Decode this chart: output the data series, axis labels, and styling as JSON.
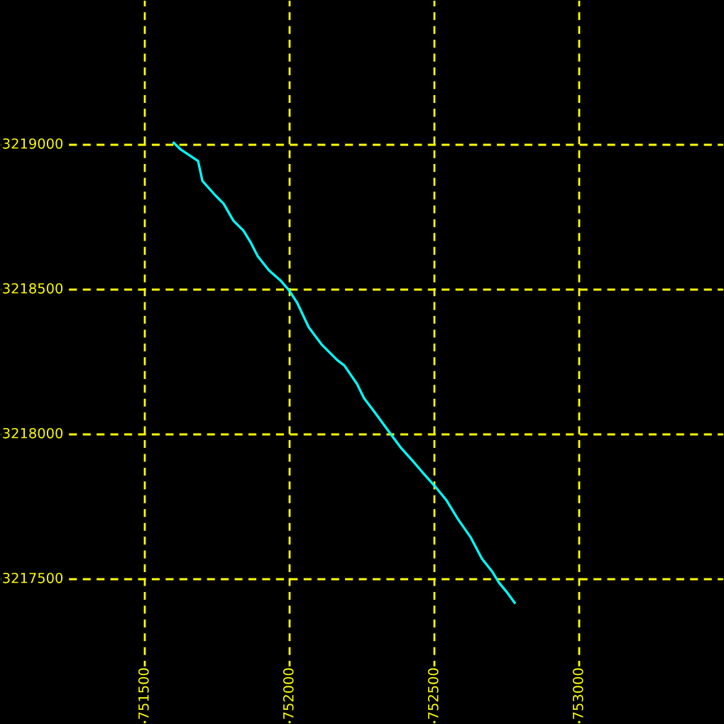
{
  "chart_data": {
    "type": "line",
    "x": [
      751600,
      751625,
      751684,
      751699,
      751743,
      751772,
      751806,
      751841,
      751865,
      751890,
      751929,
      751968,
      751998,
      752027,
      752066,
      752110,
      752164,
      752189,
      752233,
      752257,
      752287,
      752355,
      752385,
      752429,
      752458,
      752502,
      752542,
      752581,
      752625,
      752664,
      752699,
      752723,
      752752,
      752777
    ],
    "series": [
      {
        "color": "#00ffff",
        "values": [
          3219007,
          3218983,
          3218944,
          3218875,
          3218826,
          3218797,
          3218738,
          3218703,
          3218664,
          3218615,
          3218566,
          3218532,
          3218498,
          3218453,
          3218370,
          3218311,
          3218257,
          3218238,
          3218174,
          3218125,
          3218086,
          3217993,
          3217953,
          3217904,
          3217870,
          3217821,
          3217772,
          3217708,
          3217645,
          3217571,
          3217527,
          3217488,
          3217453,
          3217419
        ]
      }
    ],
    "xlim": [
      751000,
      753500
    ],
    "ylim": [
      3217000,
      3219500
    ],
    "xticks": [
      751500,
      752000,
      752500,
      753000
    ],
    "yticks": [
      3217500,
      3218000,
      3218500,
      3219000
    ],
    "grid": true,
    "marker": "none",
    "line_style": "solid"
  }
}
